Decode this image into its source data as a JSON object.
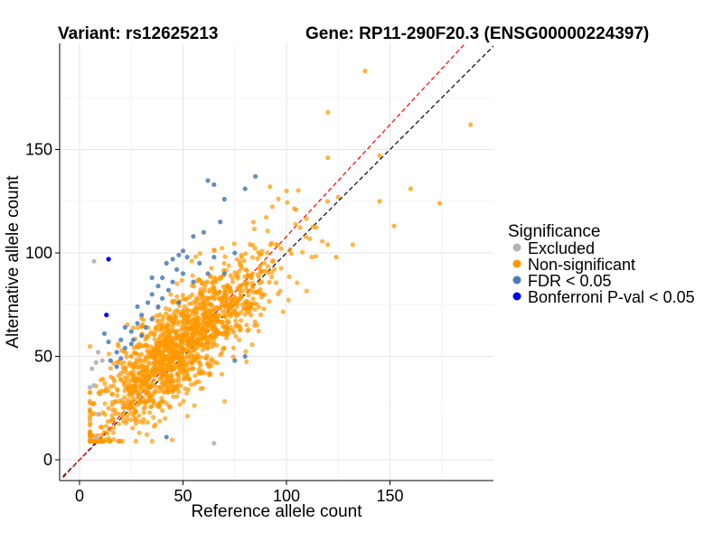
{
  "chart_data": {
    "type": "scatter",
    "title_left": "Variant: rs12625213",
    "title_right": "Gene: RP11-290F20.3 (ENSG00000224397)",
    "xlabel": "Reference allele count",
    "ylabel": "Alternative allele count",
    "xlim": [
      -8,
      200
    ],
    "ylim": [
      -10,
      195
    ],
    "x_ticks": [
      0,
      50,
      100,
      150
    ],
    "y_ticks": [
      0,
      50,
      100,
      150
    ],
    "grid": true,
    "legend": {
      "title": "Significance",
      "position": "right",
      "entries": [
        {
          "label": "Excluded",
          "color": "#b3b3b3"
        },
        {
          "label": "Non-significant",
          "color": "#ff9900"
        },
        {
          "label": "FDR < 0.05",
          "color": "#4a7db5"
        },
        {
          "label": "Bonferroni P-val < 0.05",
          "color": "#0000ff"
        }
      ]
    },
    "reference_lines": [
      {
        "name": "identity",
        "slope": 1.0,
        "intercept": 0,
        "color": "#000000",
        "dashed": true
      },
      {
        "name": "fitted",
        "slope": 1.08,
        "intercept": 0,
        "color": "#ff0000",
        "dashed": true
      }
    ],
    "series": [
      {
        "name": "Excluded",
        "color": "#b3b3b3",
        "points": [
          [
            7,
            96
          ],
          [
            9,
            52
          ],
          [
            8,
            47
          ],
          [
            6,
            44
          ],
          [
            5,
            35
          ],
          [
            7,
            36
          ],
          [
            9,
            22
          ],
          [
            8,
            11
          ],
          [
            65,
            8
          ],
          [
            11,
            48
          ]
        ]
      },
      {
        "name": "FDR < 0.05",
        "color": "#4a7db5",
        "points": [
          [
            62,
            135
          ],
          [
            65,
            133
          ],
          [
            80,
            131
          ],
          [
            85,
            137
          ],
          [
            70,
            126
          ],
          [
            68,
            115
          ],
          [
            60,
            110
          ],
          [
            55,
            108
          ],
          [
            50,
            101
          ],
          [
            48,
            99
          ],
          [
            52,
            98
          ],
          [
            58,
            95
          ],
          [
            45,
            97
          ],
          [
            42,
            95
          ],
          [
            47,
            92
          ],
          [
            50,
            90
          ],
          [
            40,
            88
          ],
          [
            45,
            86
          ],
          [
            38,
            84
          ],
          [
            43,
            82
          ],
          [
            35,
            80
          ],
          [
            40,
            78
          ],
          [
            33,
            76
          ],
          [
            38,
            74
          ],
          [
            30,
            70
          ],
          [
            35,
            68
          ],
          [
            28,
            66
          ],
          [
            32,
            64
          ],
          [
            25,
            62
          ],
          [
            30,
            60
          ],
          [
            20,
            58
          ],
          [
            25,
            56
          ],
          [
            22,
            54
          ],
          [
            18,
            52
          ],
          [
            20,
            49
          ],
          [
            15,
            48
          ],
          [
            18,
            45
          ],
          [
            14,
            57
          ],
          [
            12,
            61
          ],
          [
            22,
            64
          ],
          [
            28,
            74
          ],
          [
            35,
            88
          ],
          [
            65,
            98
          ],
          [
            75,
            100
          ],
          [
            62,
            90
          ],
          [
            42,
            11
          ],
          [
            80,
            50
          ],
          [
            75,
            48
          ],
          [
            70,
            90
          ],
          [
            55,
            86
          ],
          [
            48,
            76
          ],
          [
            26,
            58
          ]
        ]
      },
      {
        "name": "Bonferroni P-val < 0.05",
        "color": "#0000ff",
        "points": [
          [
            14,
            97
          ],
          [
            13,
            70
          ]
        ]
      },
      {
        "name": "Non-significant",
        "color": "#ff9900",
        "generated": true,
        "n_points": 1500,
        "outliers": [
          [
            138,
            188
          ],
          [
            120,
            168
          ],
          [
            189,
            162
          ],
          [
            145,
            147
          ],
          [
            145,
            125
          ],
          [
            174,
            124
          ],
          [
            152,
            113
          ],
          [
            125,
            127
          ],
          [
            124,
            98
          ],
          [
            132,
            104
          ],
          [
            120,
            104
          ],
          [
            92,
            132
          ],
          [
            100,
            130
          ],
          [
            120,
            146
          ],
          [
            160,
            131
          ]
        ]
      }
    ]
  }
}
